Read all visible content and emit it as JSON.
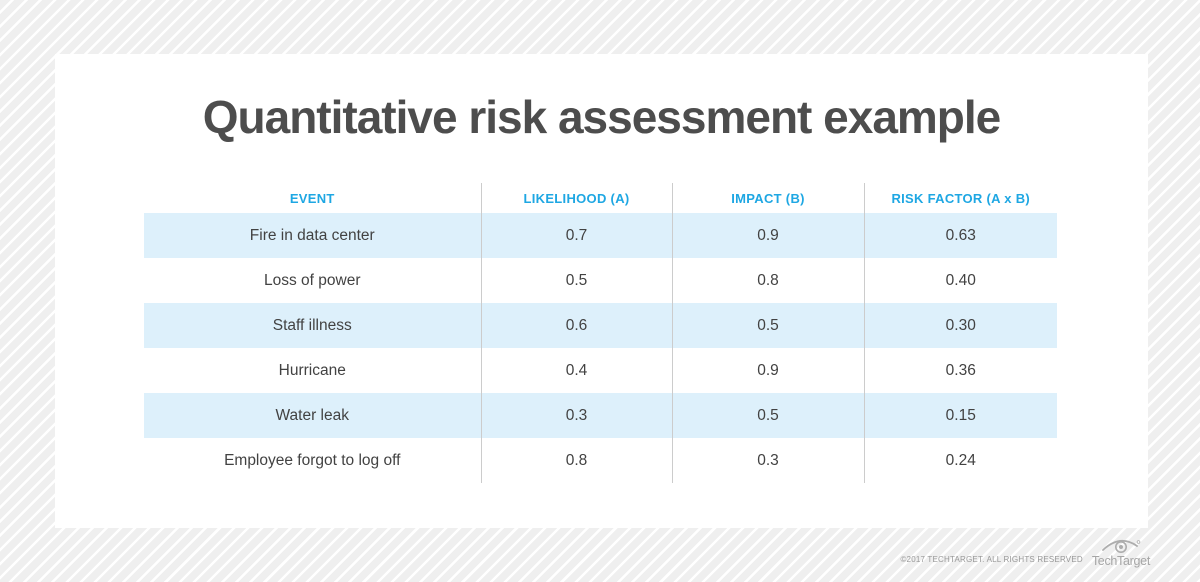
{
  "title": "Quantitative risk assessment example",
  "table": {
    "columns": [
      "EVENT",
      "LIKELIHOOD (A)",
      "IMPACT (B)",
      "RISK FACTOR (A x B)"
    ],
    "rows": [
      {
        "event": "Fire in data center",
        "likelihood": "0.7",
        "impact": "0.9",
        "risk_factor": "0.63"
      },
      {
        "event": "Loss of power",
        "likelihood": "0.5",
        "impact": "0.8",
        "risk_factor": "0.40"
      },
      {
        "event": "Staff illness",
        "likelihood": "0.6",
        "impact": "0.5",
        "risk_factor": "0.30"
      },
      {
        "event": "Hurricane",
        "likelihood": "0.4",
        "impact": "0.9",
        "risk_factor": "0.36"
      },
      {
        "event": "Water leak",
        "likelihood": "0.3",
        "impact": "0.5",
        "risk_factor": "0.15"
      },
      {
        "event": "Employee forgot to log off",
        "likelihood": "0.8",
        "impact": "0.3",
        "risk_factor": "0.24"
      }
    ]
  },
  "footer": {
    "copyright": "©2017 TECHTARGET. ALL RIGHTS RESERVED",
    "logo_text": "TechTarget",
    "logo_icon": "eye-target-icon"
  },
  "colors": {
    "header_blue": "#1ea7e3",
    "row_blue": "#ddf0fb",
    "title_gray": "#4d4d4d",
    "stripe_gray": "#efefef",
    "separator_gray": "#cccccc"
  },
  "chart_data": {
    "type": "table",
    "title": "Quantitative risk assessment example",
    "columns": [
      "EVENT",
      "LIKELIHOOD (A)",
      "IMPACT (B)",
      "RISK FACTOR (A x B)"
    ],
    "rows": [
      [
        "Fire in data center",
        0.7,
        0.9,
        0.63
      ],
      [
        "Loss of power",
        0.5,
        0.8,
        0.4
      ],
      [
        "Staff illness",
        0.6,
        0.5,
        0.3
      ],
      [
        "Hurricane",
        0.4,
        0.9,
        0.36
      ],
      [
        "Water leak",
        0.3,
        0.5,
        0.15
      ],
      [
        "Employee forgot to log off",
        0.8,
        0.3,
        0.24
      ]
    ],
    "notes": "risk_factor = likelihood × impact; alternating light-blue/white rows; all cells center-aligned"
  }
}
